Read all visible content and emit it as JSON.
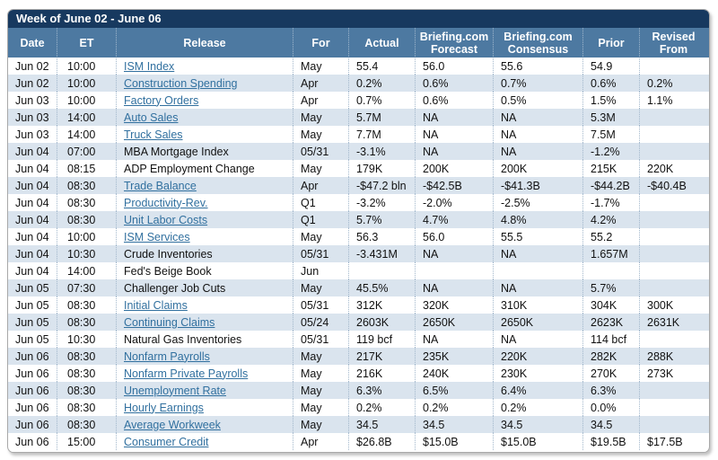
{
  "title": "Week of June 02 - June 06",
  "colors": {
    "title_bar": "#17395f",
    "header_bar": "#4d79a1",
    "row_alt": "#dae4ee",
    "link": "#31709f"
  },
  "table": {
    "columns": [
      {
        "key": "date",
        "label": "Date"
      },
      {
        "key": "et",
        "label": "ET"
      },
      {
        "key": "release",
        "label": "Release"
      },
      {
        "key": "for",
        "label": "For"
      },
      {
        "key": "actual",
        "label": "Actual"
      },
      {
        "key": "forecast",
        "label": "Briefing.com Forecast"
      },
      {
        "key": "consensus",
        "label": "Briefing.com Consensus"
      },
      {
        "key": "prior",
        "label": "Prior"
      },
      {
        "key": "revised",
        "label": "Revised From"
      }
    ],
    "rows": [
      {
        "date": "Jun 02",
        "et": "10:00",
        "release": "ISM Index",
        "is_link": true,
        "for": "May",
        "actual": "55.4",
        "forecast": "56.0",
        "consensus": "55.6",
        "prior": "54.9",
        "revised": ""
      },
      {
        "date": "Jun 02",
        "et": "10:00",
        "release": "Construction Spending",
        "is_link": true,
        "for": "Apr",
        "actual": "0.2%",
        "forecast": "0.6%",
        "consensus": "0.7%",
        "prior": "0.6%",
        "revised": "0.2%"
      },
      {
        "date": "Jun 03",
        "et": "10:00",
        "release": "Factory Orders",
        "is_link": true,
        "for": "Apr",
        "actual": "0.7%",
        "forecast": "0.6%",
        "consensus": "0.5%",
        "prior": "1.5%",
        "revised": "1.1%"
      },
      {
        "date": "Jun 03",
        "et": "14:00",
        "release": "Auto Sales",
        "is_link": true,
        "for": "May",
        "actual": "5.7M",
        "forecast": "NA",
        "consensus": "NA",
        "prior": "5.3M",
        "revised": ""
      },
      {
        "date": "Jun 03",
        "et": "14:00",
        "release": "Truck Sales",
        "is_link": true,
        "for": "May",
        "actual": "7.7M",
        "forecast": "NA",
        "consensus": "NA",
        "prior": "7.5M",
        "revised": ""
      },
      {
        "date": "Jun 04",
        "et": "07:00",
        "release": "MBA Mortgage Index",
        "is_link": false,
        "for": "05/31",
        "actual": "-3.1%",
        "forecast": "NA",
        "consensus": "NA",
        "prior": "-1.2%",
        "revised": ""
      },
      {
        "date": "Jun 04",
        "et": "08:15",
        "release": "ADP Employment Change",
        "is_link": false,
        "for": "May",
        "actual": "179K",
        "forecast": "200K",
        "consensus": "200K",
        "prior": "215K",
        "revised": "220K"
      },
      {
        "date": "Jun 04",
        "et": "08:30",
        "release": "Trade Balance",
        "is_link": true,
        "for": "Apr",
        "actual": "-$47.2 bln",
        "forecast": "-$42.5B",
        "consensus": "-$41.3B",
        "prior": "-$44.2B",
        "revised": "-$40.4B"
      },
      {
        "date": "Jun 04",
        "et": "08:30",
        "release": "Productivity-Rev.",
        "is_link": true,
        "for": "Q1",
        "actual": "-3.2%",
        "forecast": "-2.0%",
        "consensus": "-2.5%",
        "prior": "-1.7%",
        "revised": ""
      },
      {
        "date": "Jun 04",
        "et": "08:30",
        "release": "Unit Labor Costs",
        "is_link": true,
        "for": "Q1",
        "actual": "5.7%",
        "forecast": "4.7%",
        "consensus": "4.8%",
        "prior": "4.2%",
        "revised": ""
      },
      {
        "date": "Jun 04",
        "et": "10:00",
        "release": "ISM Services",
        "is_link": true,
        "for": "May",
        "actual": "56.3",
        "forecast": "56.0",
        "consensus": "55.5",
        "prior": "55.2",
        "revised": ""
      },
      {
        "date": "Jun 04",
        "et": "10:30",
        "release": "Crude Inventories",
        "is_link": false,
        "for": "05/31",
        "actual": "-3.431M",
        "forecast": "NA",
        "consensus": "NA",
        "prior": "1.657M",
        "revised": ""
      },
      {
        "date": "Jun 04",
        "et": "14:00",
        "release": "Fed's Beige Book",
        "is_link": false,
        "for": "Jun",
        "actual": "",
        "forecast": "",
        "consensus": "",
        "prior": "",
        "revised": ""
      },
      {
        "date": "Jun 05",
        "et": "07:30",
        "release": "Challenger Job Cuts",
        "is_link": false,
        "for": "May",
        "actual": "45.5%",
        "forecast": "NA",
        "consensus": "NA",
        "prior": "5.7%",
        "revised": ""
      },
      {
        "date": "Jun 05",
        "et": "08:30",
        "release": "Initial Claims",
        "is_link": true,
        "for": "05/31",
        "actual": "312K",
        "forecast": "320K",
        "consensus": "310K",
        "prior": "304K",
        "revised": "300K"
      },
      {
        "date": "Jun 05",
        "et": "08:30",
        "release": "Continuing Claims",
        "is_link": true,
        "for": "05/24",
        "actual": "2603K",
        "forecast": "2650K",
        "consensus": "2650K",
        "prior": "2623K",
        "revised": "2631K"
      },
      {
        "date": "Jun 05",
        "et": "10:30",
        "release": "Natural Gas Inventories",
        "is_link": false,
        "for": "05/31",
        "actual": "119 bcf",
        "forecast": "NA",
        "consensus": "NA",
        "prior": "114 bcf",
        "revised": ""
      },
      {
        "date": "Jun 06",
        "et": "08:30",
        "release": "Nonfarm Payrolls",
        "is_link": true,
        "for": "May",
        "actual": "217K",
        "forecast": "235K",
        "consensus": "220K",
        "prior": "282K",
        "revised": "288K"
      },
      {
        "date": "Jun 06",
        "et": "08:30",
        "release": "Nonfarm Private Payrolls",
        "is_link": true,
        "for": "May",
        "actual": "216K",
        "forecast": "240K",
        "consensus": "230K",
        "prior": "270K",
        "revised": "273K"
      },
      {
        "date": "Jun 06",
        "et": "08:30",
        "release": "Unemployment Rate",
        "is_link": true,
        "for": "May",
        "actual": "6.3%",
        "forecast": "6.5%",
        "consensus": "6.4%",
        "prior": "6.3%",
        "revised": ""
      },
      {
        "date": "Jun 06",
        "et": "08:30",
        "release": "Hourly Earnings",
        "is_link": true,
        "for": "May",
        "actual": "0.2%",
        "forecast": "0.2%",
        "consensus": "0.2%",
        "prior": "0.0%",
        "revised": ""
      },
      {
        "date": "Jun 06",
        "et": "08:30",
        "release": "Average Workweek",
        "is_link": true,
        "for": "May",
        "actual": "34.5",
        "forecast": "34.5",
        "consensus": "34.5",
        "prior": "34.5",
        "revised": ""
      },
      {
        "date": "Jun 06",
        "et": "15:00",
        "release": "Consumer Credit",
        "is_link": true,
        "for": "Apr",
        "actual": "$26.8B",
        "forecast": "$15.0B",
        "consensus": "$15.0B",
        "prior": "$19.5B",
        "revised": "$17.5B"
      }
    ]
  }
}
